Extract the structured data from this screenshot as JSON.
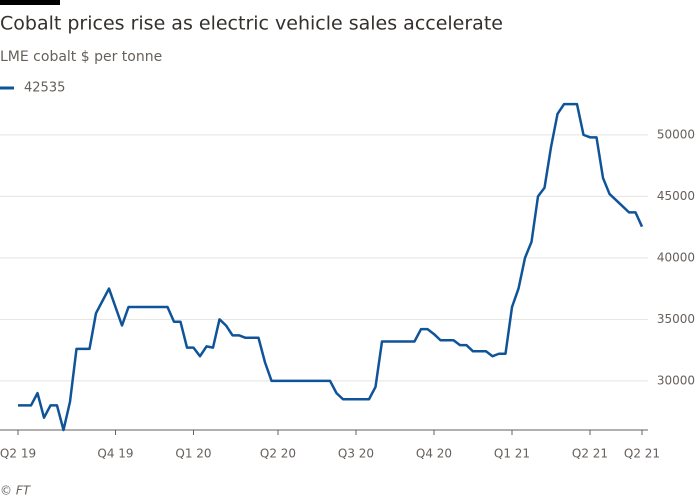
{
  "chart_data": {
    "type": "line",
    "title": "Cobalt prices rise as electric vehicle sales accelerate",
    "subtitle": "LME cobalt $ per tonne",
    "source": "© FT",
    "categories": [
      "Q2 19",
      null,
      null,
      null,
      null,
      null,
      null,
      null,
      null,
      null,
      null,
      null,
      null,
      null,
      null,
      "Q4 19",
      null,
      null,
      null,
      null,
      null,
      null,
      null,
      null,
      null,
      null,
      null,
      "Q1 20",
      null,
      null,
      null,
      null,
      null,
      null,
      null,
      null,
      null,
      null,
      null,
      null,
      "Q2 20",
      null,
      null,
      null,
      null,
      null,
      null,
      null,
      null,
      null,
      null,
      null,
      "Q3 20",
      null,
      null,
      null,
      null,
      null,
      null,
      null,
      null,
      null,
      null,
      null,
      "Q4 20",
      null,
      null,
      null,
      null,
      null,
      null,
      null,
      null,
      null,
      null,
      null,
      "Q1 21",
      null,
      null,
      null,
      null,
      null,
      null,
      null,
      null,
      null,
      null,
      null,
      "Q2 21",
      null,
      null,
      null,
      null,
      null,
      null,
      null,
      "Q2 21"
    ],
    "series": [
      {
        "name": "42535",
        "color": "#0f5499",
        "values": [
          28000,
          28000,
          28000,
          29000,
          27000,
          28000,
          28000,
          26000,
          28300,
          32600,
          32600,
          32600,
          35500,
          36500,
          37500,
          36000,
          34500,
          36000,
          36000,
          36000,
          36000,
          36000,
          36000,
          36000,
          34800,
          34800,
          32700,
          32700,
          32000,
          32800,
          32700,
          35000,
          34500,
          33700,
          33700,
          33500,
          33500,
          33500,
          31500,
          30000,
          30000,
          30000,
          30000,
          30000,
          30000,
          30000,
          30000,
          30000,
          30000,
          29000,
          28500,
          28500,
          28500,
          28500,
          28500,
          29500,
          33200,
          33200,
          33200,
          33200,
          33200,
          33200,
          34200,
          34200,
          33800,
          33300,
          33300,
          33300,
          32900,
          32900,
          32400,
          32400,
          32400,
          32000,
          32200,
          32200,
          36000,
          37500,
          40000,
          41300,
          45000,
          45700,
          49000,
          51700,
          52500,
          52500,
          52500,
          50000,
          49800,
          49800,
          46500,
          45200,
          44700,
          44200,
          43700,
          43700,
          42535
        ]
      }
    ],
    "ylim": [
      26000,
      53000
    ],
    "yticks": [
      30000,
      35000,
      40000,
      45000,
      50000
    ],
    "grid": true
  }
}
